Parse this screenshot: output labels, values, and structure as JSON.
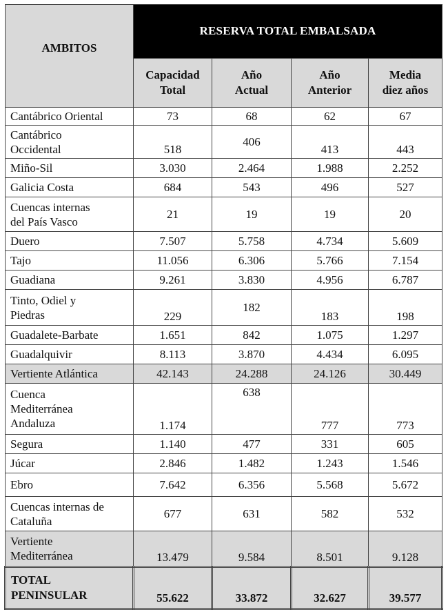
{
  "header": {
    "ambitos": "AMBITOS",
    "group": "RESERVA TOTAL EMBALSADA",
    "columns": [
      [
        "Capacidad",
        "Total"
      ],
      [
        "Año",
        "Actual"
      ],
      [
        "Año",
        "Anterior"
      ],
      [
        "Media",
        "diez años"
      ]
    ]
  },
  "rows": [
    {
      "lines": [
        "Cantábrico Oriental"
      ],
      "values": [
        "73",
        "68",
        "62",
        "67"
      ],
      "align": [
        "mid",
        "mid",
        "mid",
        "mid"
      ],
      "h": 26
    },
    {
      "lines": [
        "Cantábrico",
        "Occidental"
      ],
      "values": [
        "518",
        "406",
        "413",
        "443"
      ],
      "align": [
        "bot",
        "mid",
        "bot",
        "bot"
      ],
      "h": 48
    },
    {
      "lines": [
        "Miño-Sil"
      ],
      "values": [
        "3.030",
        "2.464",
        "1.988",
        "2.252"
      ],
      "align": [
        "mid",
        "mid",
        "mid",
        "mid"
      ],
      "h": 28
    },
    {
      "lines": [
        "Galicia Costa"
      ],
      "values": [
        "684",
        "543",
        "496",
        "527"
      ],
      "align": [
        "mid",
        "mid",
        "mid",
        "mid"
      ],
      "h": 28
    },
    {
      "lines": [
        "Cuencas internas",
        "del País Vasco"
      ],
      "values": [
        "21",
        "19",
        "19",
        "20"
      ],
      "align": [
        "mid",
        "mid",
        "mid",
        "mid"
      ],
      "h": 50
    },
    {
      "lines": [
        "Duero"
      ],
      "values": [
        "7.507",
        "5.758",
        "4.734",
        "5.609"
      ],
      "align": [
        "mid",
        "mid",
        "mid",
        "mid"
      ],
      "h": 28
    },
    {
      "lines": [
        "Tajo"
      ],
      "values": [
        "11.056",
        "6.306",
        "5.766",
        "7.154"
      ],
      "align": [
        "mid",
        "mid",
        "mid",
        "mid"
      ],
      "h": 28
    },
    {
      "lines": [
        "Guadiana"
      ],
      "values": [
        "9.261",
        "3.830",
        "4.956",
        "6.787"
      ],
      "align": [
        "mid",
        "mid",
        "mid",
        "mid"
      ],
      "h": 28
    },
    {
      "lines": [
        "Tinto, Odiel y",
        "Piedras"
      ],
      "values": [
        "229",
        "182",
        "183",
        "198"
      ],
      "align": [
        "bot",
        "mid",
        "bot",
        "bot"
      ],
      "h": 52
    },
    {
      "lines": [
        "Guadalete-Barbate"
      ],
      "values": [
        "1.651",
        "842",
        "1.075",
        "1.297"
      ],
      "align": [
        "mid",
        "mid",
        "mid",
        "mid"
      ],
      "h": 28
    },
    {
      "lines": [
        "Guadalquivir"
      ],
      "values": [
        "8.113",
        "3.870",
        "4.434",
        "6.095"
      ],
      "align": [
        "mid",
        "mid",
        "mid",
        "mid"
      ],
      "h": 28
    },
    {
      "lines": [
        "Vertiente Atlántica"
      ],
      "values": [
        "42.143",
        "24.288",
        "24.126",
        "30.449"
      ],
      "align": [
        "mid",
        "mid",
        "mid",
        "mid"
      ],
      "h": 28,
      "subtotal": true
    },
    {
      "lines": [
        "Cuenca",
        "Mediterránea",
        "Andaluza"
      ],
      "values": [
        "1.174",
        "638",
        "777",
        "773"
      ],
      "align": [
        "bot",
        "top",
        "bot",
        "bot"
      ],
      "h": 74
    },
    {
      "lines": [
        "Segura"
      ],
      "values": [
        "1.140",
        "477",
        "331",
        "605"
      ],
      "align": [
        "mid",
        "mid",
        "mid",
        "mid"
      ],
      "h": 28
    },
    {
      "lines": [
        "Júcar"
      ],
      "values": [
        "2.846",
        "1.482",
        "1.243",
        "1.546"
      ],
      "align": [
        "mid",
        "mid",
        "mid",
        "mid"
      ],
      "h": 28
    },
    {
      "lines": [
        "Ebro"
      ],
      "values": [
        "7.642",
        "6.356",
        "5.568",
        "5.672"
      ],
      "align": [
        "mid",
        "mid",
        "mid",
        "mid"
      ],
      "h": 34
    },
    {
      "lines": [
        "Cuencas internas de",
        "Cataluña"
      ],
      "values": [
        "677",
        "631",
        "582",
        "532"
      ],
      "align": [
        "mid",
        "mid",
        "mid",
        "mid"
      ],
      "h": 50
    },
    {
      "lines": [
        "Vertiente",
        "Mediterránea"
      ],
      "values": [
        "13.479",
        "9.584",
        "8.501",
        "9.128"
      ],
      "align": [
        "bot",
        "bot",
        "bot",
        "bot"
      ],
      "h": 52,
      "subtotal": true
    }
  ],
  "total": {
    "lines": [
      "TOTAL",
      "PENINSULAR"
    ],
    "values": [
      "55.622",
      "33.872",
      "32.627",
      "39.577"
    ]
  }
}
